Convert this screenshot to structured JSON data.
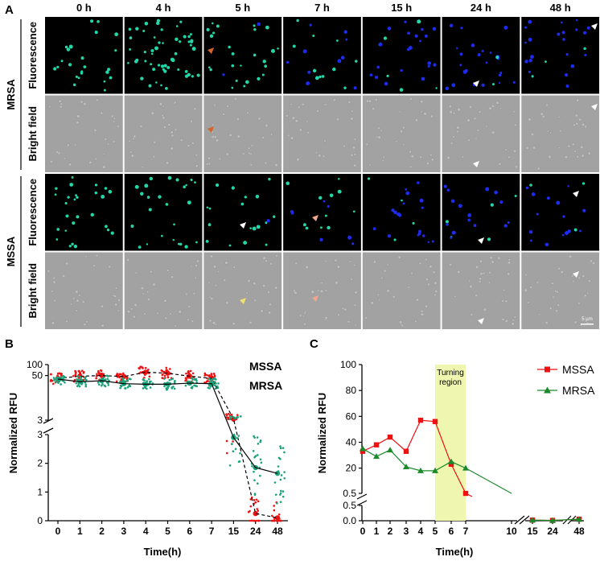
{
  "panel_a": {
    "label": "A",
    "times": [
      "0 h",
      "4 h",
      "5 h",
      "7 h",
      "15 h",
      "24 h",
      "48 h"
    ],
    "groups": [
      {
        "name": "MRSA",
        "rows": [
          "Fluorescence",
          "Bright field"
        ]
      },
      {
        "name": "MSSA",
        "rows": [
          "Fluorescence",
          "Bright field"
        ]
      }
    ],
    "scale_bar": "5 μm",
    "colors": {
      "green": "#23d7a8",
      "blue": "#1d2cf0",
      "bright": "#a2a2a2",
      "bg": "#000000"
    }
  },
  "chart_data": [
    {
      "type": "scatter",
      "panel": "B",
      "ylabel": "Normalized RFU",
      "xlabel": "Time(h)",
      "categories": [
        "0",
        "1",
        "2",
        "3",
        "4",
        "5",
        "6",
        "7",
        "15",
        "24",
        "48"
      ],
      "y_ticks_upper": [
        "100",
        "50",
        "3"
      ],
      "y_ticks_lower": [
        "3",
        "2",
        "1",
        "0"
      ],
      "series": [
        {
          "name": "MSSA",
          "color": "#ee1111",
          "mean": [
            42,
            48,
            50,
            47,
            62,
            58,
            48,
            42,
            3.2,
            0.25,
            0.1
          ]
        },
        {
          "name": "MRSA",
          "color": "#1aa37a",
          "mean": [
            40,
            34,
            36,
            30,
            29,
            29,
            31,
            30,
            2.9,
            1.85,
            1.65
          ]
        }
      ]
    },
    {
      "type": "line",
      "panel": "C",
      "ylabel": "Normalized RFU",
      "xlabel": "Time(h)",
      "x_ticks": [
        "0",
        "1",
        "2",
        "3",
        "4",
        "5",
        "6",
        "7",
        "10",
        "15",
        "24",
        "48"
      ],
      "y_ticks_upper": [
        "100",
        "80",
        "60",
        "40",
        "20",
        "0.5"
      ],
      "y_ticks_lower": [
        "0.5",
        "0.0"
      ],
      "annotation": "Turning region",
      "series": [
        {
          "name": "MSSA",
          "color": "#ee1111",
          "x": [
            "0",
            "1",
            "2",
            "3",
            "4",
            "5",
            "6",
            "7",
            "15",
            "24",
            "48"
          ],
          "y": [
            33,
            38,
            44,
            33,
            57,
            56,
            23,
            0.5,
            0.02,
            0.01,
            0.05
          ]
        },
        {
          "name": "MRSA",
          "color": "#1a8a2a",
          "x": [
            "0",
            "1",
            "2",
            "3",
            "4",
            "5",
            "6",
            "7",
            "15",
            "24",
            "48"
          ],
          "y": [
            35,
            29,
            34,
            21,
            18,
            18,
            25,
            20,
            0.02,
            0.01,
            0.05
          ]
        }
      ]
    }
  ]
}
